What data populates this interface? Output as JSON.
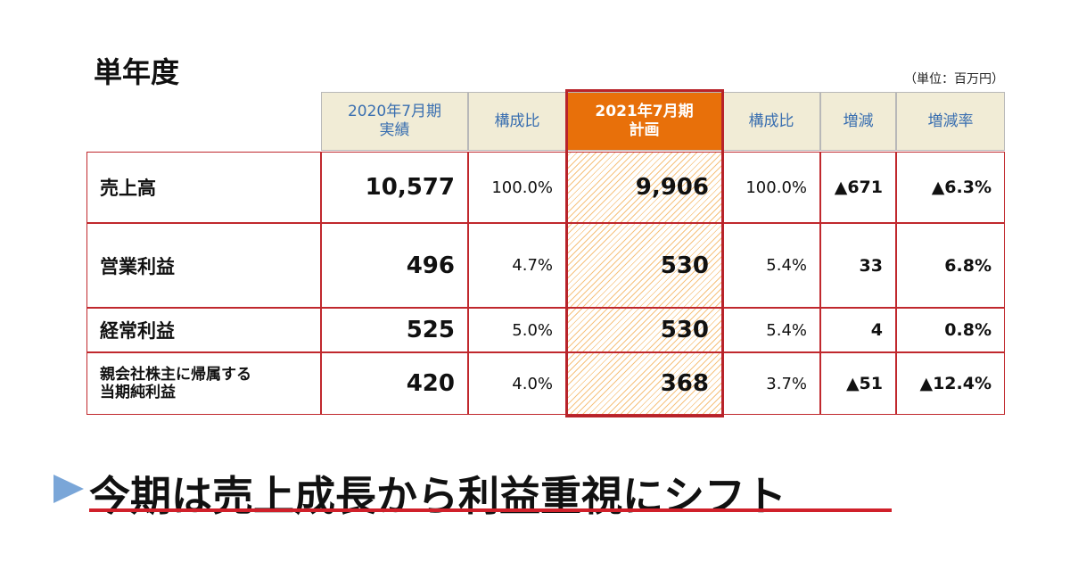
{
  "header": {
    "title": "単年度",
    "unit": "（単位：百万円）"
  },
  "table": {
    "columns": [
      [
        "2020年7月期",
        "実績"
      ],
      [
        "構成比"
      ],
      [
        "2021年7月期",
        "計画"
      ],
      [
        "構成比"
      ],
      [
        "増減"
      ],
      [
        "増減率"
      ]
    ],
    "rows": [
      {
        "label": [
          "売上高"
        ],
        "cells": [
          "10,577",
          "100.0%",
          "9,906",
          "100.0%",
          "▲671",
          "▲6.3%"
        ]
      },
      {
        "label": [
          "営業利益"
        ],
        "cells": [
          "496",
          "4.7%",
          "530",
          "5.4%",
          "33",
          "6.8%"
        ]
      },
      {
        "label": [
          "経常利益"
        ],
        "cells": [
          "525",
          "5.0%",
          "530",
          "5.4%",
          "4",
          "0.8%"
        ]
      },
      {
        "label": [
          "親会社株主に帰属する",
          "当期純利益"
        ],
        "cells": [
          "420",
          "4.0%",
          "368",
          "3.7%",
          "▲51",
          "▲12.4%"
        ]
      }
    ]
  },
  "footer": {
    "headline": "今期は売上成長から利益重視にシフト"
  }
}
